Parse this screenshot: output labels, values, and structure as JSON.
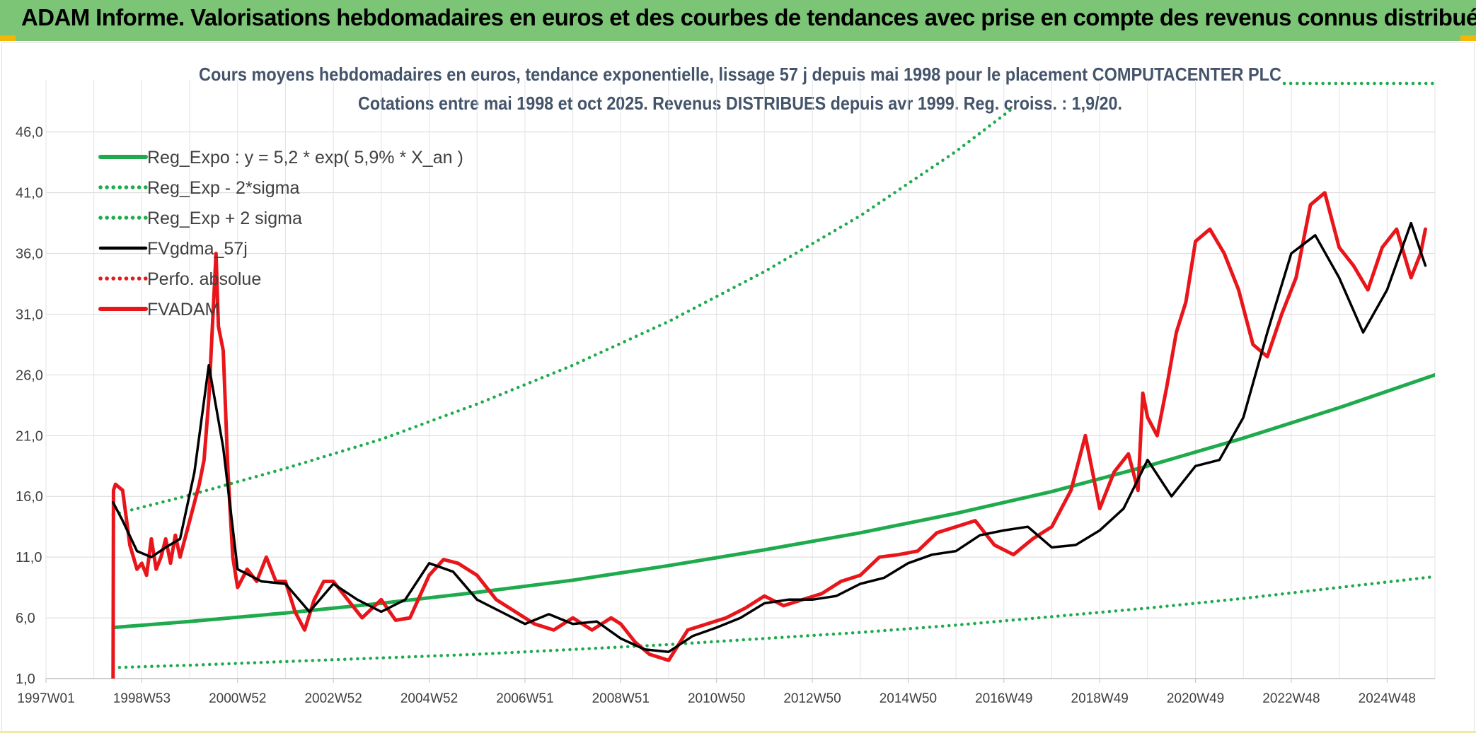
{
  "header": {
    "title": "ADAM Informe. Valorisations hebdomadaires en euros et des courbes de tendances avec prise en compte des revenus connus distribués"
  },
  "colors": {
    "header_bg": "#7cc576",
    "reg_expo": "#1fab4d",
    "fvgdma": "#000000",
    "perfo": "#e31a1c",
    "fvadam": "#e8161b"
  },
  "chart_data": {
    "type": "line",
    "title": "Cours moyens hebdomadaires en euros, tendance exponentielle, lissage 57 j depuis mai 1998 pour le placement COMPUTACENTER PLC",
    "subtitle": "Cotations entre mai 1998 et oct 2025. Revenus DISTRIBUES depuis avr 1999. Reg. croiss. : 1,9/20.",
    "xlabel": "",
    "ylabel": "",
    "ylim": [
      1,
      50
    ],
    "xlim": [
      1997.0,
      2026.0
    ],
    "y_ticks": [
      "46,0",
      "41,0",
      "36,0",
      "31,0",
      "26,0",
      "21,0",
      "16,0",
      "11,0",
      "6,0",
      "1,0"
    ],
    "y_tick_values": [
      46,
      41,
      36,
      31,
      26,
      21,
      16,
      11,
      6,
      1
    ],
    "x_ticks": [
      "1997W01",
      "1998W53",
      "2000W52",
      "2002W52",
      "2004W52",
      "2006W51",
      "2008W51",
      "2010W50",
      "2012W50",
      "2014W50",
      "2016W49",
      "2018W49",
      "2020W49",
      "2022W48",
      "2024W48"
    ],
    "x_tick_values": [
      1997.0,
      1999.0,
      2001.0,
      2003.0,
      2005.0,
      2007.0,
      2009.0,
      2011.0,
      2013.0,
      2015.0,
      2017.0,
      2019.0,
      2021.0,
      2023.0,
      2025.0
    ],
    "grid": true,
    "legend_position": "top-left",
    "series": [
      {
        "name": "Reg_Expo : y = 5,2 * exp( 5,9% *  X_an )",
        "style": "solid-thick",
        "color": "#1fab4d",
        "x": [
          1998.4,
          2000,
          2002,
          2004,
          2006,
          2008,
          2010,
          2012,
          2014,
          2016,
          2018,
          2020,
          2022,
          2024,
          2026
        ],
        "y": [
          5.2,
          5.7,
          6.4,
          7.2,
          8.1,
          9.1,
          10.3,
          11.6,
          13.0,
          14.6,
          16.4,
          18.5,
          20.8,
          23.3,
          26.0
        ]
      },
      {
        "name": "Reg_Exp - 2*sigma",
        "style": "dotted",
        "color": "#1fab4d",
        "x": [
          1998.4,
          2000,
          2002,
          2004,
          2006,
          2008,
          2010,
          2012,
          2014,
          2016,
          2018,
          2020,
          2022,
          2024,
          2026
        ],
        "y": [
          1.9,
          2.1,
          2.4,
          2.7,
          3.0,
          3.4,
          3.8,
          4.3,
          4.8,
          5.4,
          6.1,
          6.8,
          7.6,
          8.5,
          9.4
        ]
      },
      {
        "name": "Reg_Exp + 2 sigma",
        "style": "dotted",
        "color": "#1fab4d",
        "x": [
          1998.4,
          2000,
          2002,
          2004,
          2006,
          2008,
          2010,
          2012,
          2014,
          2016,
          2017.2
        ],
        "y": [
          14.5,
          16.1,
          18.3,
          20.7,
          23.6,
          26.8,
          30.4,
          34.5,
          39.1,
          44.4,
          48.0
        ]
      },
      {
        "name": "FVgdma_57j",
        "style": "solid",
        "color": "#000000",
        "x": [
          1998.4,
          1998.6,
          1998.9,
          1999.2,
          1999.5,
          1999.8,
          2000.1,
          2000.4,
          2000.7,
          2001.0,
          2001.5,
          2002.0,
          2002.5,
          2003.0,
          2003.5,
          2004.0,
          2004.5,
          2005.0,
          2005.5,
          2006.0,
          2006.5,
          2007.0,
          2007.5,
          2008.0,
          2008.5,
          2009.0,
          2009.5,
          2010.0,
          2010.5,
          2011.0,
          2011.5,
          2012.0,
          2012.5,
          2013.0,
          2013.5,
          2014.0,
          2014.5,
          2015.0,
          2015.5,
          2016.0,
          2016.5,
          2017.0,
          2017.5,
          2018.0,
          2018.5,
          2019.0,
          2019.5,
          2020.0,
          2020.5,
          2021.0,
          2021.5,
          2022.0,
          2022.5,
          2023.0,
          2023.5,
          2024.0,
          2024.5,
          2025.0,
          2025.5,
          2025.8
        ],
        "y": [
          15.5,
          14.0,
          11.5,
          11.0,
          11.8,
          12.5,
          18.0,
          26.8,
          20.0,
          10.0,
          9.0,
          8.8,
          6.5,
          8.8,
          7.5,
          6.5,
          7.5,
          10.5,
          9.8,
          7.5,
          6.5,
          5.5,
          6.3,
          5.5,
          5.7,
          4.3,
          3.4,
          3.2,
          4.5,
          5.2,
          6.0,
          7.2,
          7.5,
          7.5,
          7.8,
          8.8,
          9.3,
          10.5,
          11.2,
          11.5,
          12.8,
          13.2,
          13.5,
          11.8,
          12.0,
          13.2,
          15.0,
          19.0,
          16.0,
          18.5,
          19.0,
          22.5,
          29.5,
          36.0,
          37.5,
          34.0,
          29.5,
          33.0,
          38.5,
          35.0
        ]
      },
      {
        "name": "Perfo. absolue",
        "style": "dotted",
        "color": "#e31a1c",
        "x": [],
        "y": []
      },
      {
        "name": "FVADAM",
        "style": "solid-thick",
        "color": "#e8161b",
        "x": [
          1998.4,
          1998.41,
          1998.45,
          1998.6,
          1998.75,
          1998.9,
          1999.0,
          1999.1,
          1999.2,
          1999.3,
          1999.4,
          1999.5,
          1999.6,
          1999.7,
          1999.8,
          2000.0,
          2000.2,
          2000.3,
          2000.4,
          2000.5,
          2000.55,
          2000.6,
          2000.7,
          2000.8,
          2000.9,
          2001.0,
          2001.2,
          2001.4,
          2001.6,
          2001.8,
          2002.0,
          2002.2,
          2002.4,
          2002.6,
          2002.8,
          2003.0,
          2003.3,
          2003.6,
          2004.0,
          2004.3,
          2004.6,
          2005.0,
          2005.3,
          2005.6,
          2006.0,
          2006.4,
          2006.8,
          2007.2,
          2007.6,
          2008.0,
          2008.4,
          2008.8,
          2009.0,
          2009.3,
          2009.6,
          2010.0,
          2010.4,
          2010.8,
          2011.2,
          2011.6,
          2012.0,
          2012.4,
          2012.8,
          2013.2,
          2013.6,
          2014.0,
          2014.4,
          2014.8,
          2015.2,
          2015.6,
          2016.0,
          2016.4,
          2016.8,
          2017.2,
          2017.6,
          2018.0,
          2018.4,
          2018.7,
          2019.0,
          2019.3,
          2019.6,
          2019.8,
          2019.9,
          2020.0,
          2020.2,
          2020.4,
          2020.6,
          2020.8,
          2021.0,
          2021.3,
          2021.6,
          2021.9,
          2022.2,
          2022.5,
          2022.8,
          2023.1,
          2023.4,
          2023.7,
          2024.0,
          2024.3,
          2024.6,
          2024.9,
          2025.2,
          2025.5,
          2025.7,
          2025.8
        ],
        "y": [
          1.0,
          16.5,
          17.0,
          16.5,
          12.0,
          10.0,
          10.5,
          9.5,
          12.5,
          10.0,
          11.0,
          12.5,
          10.5,
          12.8,
          11.0,
          14.0,
          17.0,
          19.0,
          24.0,
          32.0,
          36.0,
          30.0,
          28.0,
          18.0,
          11.0,
          8.5,
          10.0,
          9.0,
          11.0,
          9.0,
          9.0,
          6.5,
          5.0,
          7.5,
          9.0,
          9.0,
          7.5,
          6.0,
          7.5,
          5.8,
          6.0,
          9.5,
          10.8,
          10.5,
          9.5,
          7.5,
          6.5,
          5.5,
          5.0,
          6.0,
          5.0,
          6.0,
          5.5,
          4.0,
          3.0,
          2.5,
          5.0,
          5.5,
          6.0,
          6.8,
          7.8,
          7.0,
          7.5,
          8.0,
          9.0,
          9.5,
          11.0,
          11.2,
          11.5,
          13.0,
          13.5,
          14.0,
          12.0,
          11.2,
          12.5,
          13.5,
          16.5,
          21.0,
          15.0,
          18.0,
          19.5,
          16.5,
          24.5,
          22.5,
          21.0,
          25.0,
          29.5,
          32.0,
          37.0,
          38.0,
          36.0,
          33.0,
          28.5,
          27.5,
          31.0,
          34.0,
          40.0,
          41.0,
          36.5,
          35.0,
          33.0,
          36.5,
          38.0,
          34.0,
          36.0,
          38.0
        ]
      }
    ]
  }
}
